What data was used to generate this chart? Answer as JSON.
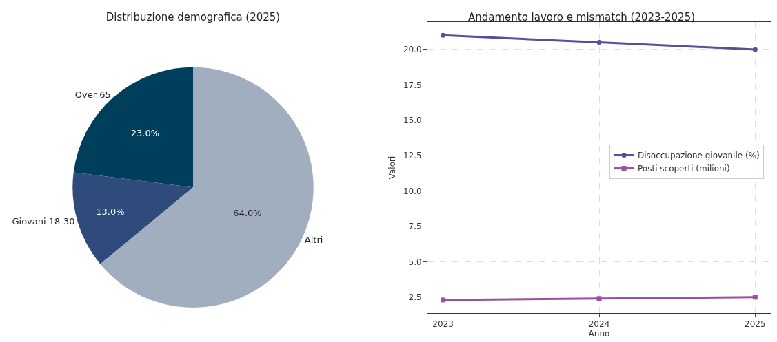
{
  "chart_data": [
    {
      "type": "pie",
      "title": "Distribuzione demografica (2025)",
      "categories": [
        "Over 65",
        "Giovani 18-30",
        "Altri"
      ],
      "values": [
        23.0,
        13.0,
        64.0
      ],
      "colors": [
        "#003f5c",
        "#2f4b7c",
        "#a0aec0"
      ],
      "value_labels": [
        "23.0%",
        "13.0%",
        "64.0%"
      ],
      "legend": false
    },
    {
      "type": "line",
      "title": "Andamento lavoro e mismatch (2023-2025)",
      "xlabel": "Anno",
      "ylabel": "Valori",
      "x": [
        2023,
        2024,
        2025
      ],
      "xlim": [
        2022.9,
        2025.1
      ],
      "xticks": [
        2023,
        2024,
        2025
      ],
      "ylim": [
        1.37,
        21.94
      ],
      "yticks": [
        2.5,
        {
          "value": 5,
          "label": "5.0"
        },
        7.5,
        {
          "value": 10,
          "label": "10.0"
        },
        12.5,
        {
          "value": 15,
          "label": "15.0"
        },
        17.5,
        {
          "value": 20,
          "label": "20.0"
        }
      ],
      "grid": true,
      "legend": "right",
      "series": [
        {
          "name": "Disoccupazione giovanile (%)",
          "color": "#5c4d9a",
          "values": [
            21.0,
            20.5,
            20.0
          ],
          "marker": "circle"
        },
        {
          "name": "Posti scoperti (milioni)",
          "color": "#9c4fa0",
          "values": [
            2.3,
            2.4,
            2.5
          ],
          "marker": "square"
        }
      ]
    }
  ]
}
